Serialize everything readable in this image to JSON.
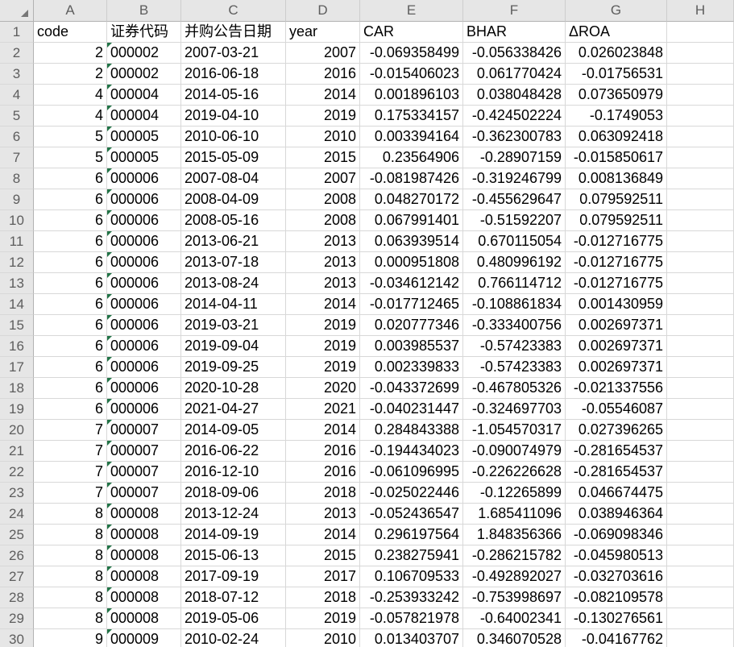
{
  "sheet": {
    "columns": [
      "A",
      "B",
      "C",
      "D",
      "E",
      "F",
      "G",
      "H"
    ],
    "column_alignments": [
      "num",
      "txt",
      "txt",
      "num",
      "num",
      "num",
      "num",
      "txt"
    ],
    "flag_column_index": 1,
    "header_row": {
      "number": "1",
      "cells": [
        "code",
        "证券代码",
        "并购公告日期",
        "year",
        "CAR",
        "BHAR",
        "ΔROA",
        ""
      ]
    },
    "rows": [
      {
        "number": "2",
        "cells": [
          "2",
          "000002",
          "2007-03-21",
          "2007",
          "-0.069358499",
          "-0.056338426",
          "0.026023848",
          ""
        ]
      },
      {
        "number": "3",
        "cells": [
          "2",
          "000002",
          "2016-06-18",
          "2016",
          "-0.015406023",
          "0.061770424",
          "-0.01756531",
          ""
        ]
      },
      {
        "number": "4",
        "cells": [
          "4",
          "000004",
          "2014-05-16",
          "2014",
          "0.001896103",
          "0.038048428",
          "0.073650979",
          ""
        ]
      },
      {
        "number": "5",
        "cells": [
          "4",
          "000004",
          "2019-04-10",
          "2019",
          "0.175334157",
          "-0.424502224",
          "-0.1749053",
          ""
        ]
      },
      {
        "number": "6",
        "cells": [
          "5",
          "000005",
          "2010-06-10",
          "2010",
          "0.003394164",
          "-0.362300783",
          "0.063092418",
          ""
        ]
      },
      {
        "number": "7",
        "cells": [
          "5",
          "000005",
          "2015-05-09",
          "2015",
          "0.23564906",
          "-0.28907159",
          "-0.015850617",
          ""
        ]
      },
      {
        "number": "8",
        "cells": [
          "6",
          "000006",
          "2007-08-04",
          "2007",
          "-0.081987426",
          "-0.319246799",
          "0.008136849",
          ""
        ]
      },
      {
        "number": "9",
        "cells": [
          "6",
          "000006",
          "2008-04-09",
          "2008",
          "0.048270172",
          "-0.455629647",
          "0.079592511",
          ""
        ]
      },
      {
        "number": "10",
        "cells": [
          "6",
          "000006",
          "2008-05-16",
          "2008",
          "0.067991401",
          "-0.51592207",
          "0.079592511",
          ""
        ]
      },
      {
        "number": "11",
        "cells": [
          "6",
          "000006",
          "2013-06-21",
          "2013",
          "0.063939514",
          "0.670115054",
          "-0.012716775",
          ""
        ]
      },
      {
        "number": "12",
        "cells": [
          "6",
          "000006",
          "2013-07-18",
          "2013",
          "0.000951808",
          "0.480996192",
          "-0.012716775",
          ""
        ]
      },
      {
        "number": "13",
        "cells": [
          "6",
          "000006",
          "2013-08-24",
          "2013",
          "-0.034612142",
          "0.766114712",
          "-0.012716775",
          ""
        ]
      },
      {
        "number": "14",
        "cells": [
          "6",
          "000006",
          "2014-04-11",
          "2014",
          "-0.017712465",
          "-0.108861834",
          "0.001430959",
          ""
        ]
      },
      {
        "number": "15",
        "cells": [
          "6",
          "000006",
          "2019-03-21",
          "2019",
          "0.020777346",
          "-0.333400756",
          "0.002697371",
          ""
        ]
      },
      {
        "number": "16",
        "cells": [
          "6",
          "000006",
          "2019-09-04",
          "2019",
          "0.003985537",
          "-0.57423383",
          "0.002697371",
          ""
        ]
      },
      {
        "number": "17",
        "cells": [
          "6",
          "000006",
          "2019-09-25",
          "2019",
          "0.002339833",
          "-0.57423383",
          "0.002697371",
          ""
        ]
      },
      {
        "number": "18",
        "cells": [
          "6",
          "000006",
          "2020-10-28",
          "2020",
          "-0.043372699",
          "-0.467805326",
          "-0.021337556",
          ""
        ]
      },
      {
        "number": "19",
        "cells": [
          "6",
          "000006",
          "2021-04-27",
          "2021",
          "-0.040231447",
          "-0.324697703",
          "-0.05546087",
          ""
        ]
      },
      {
        "number": "20",
        "cells": [
          "7",
          "000007",
          "2014-09-05",
          "2014",
          "0.284843388",
          "-1.054570317",
          "0.027396265",
          ""
        ]
      },
      {
        "number": "21",
        "cells": [
          "7",
          "000007",
          "2016-06-22",
          "2016",
          "-0.194434023",
          "-0.090074979",
          "-0.281654537",
          ""
        ]
      },
      {
        "number": "22",
        "cells": [
          "7",
          "000007",
          "2016-12-10",
          "2016",
          "-0.061096995",
          "-0.226226628",
          "-0.281654537",
          ""
        ]
      },
      {
        "number": "23",
        "cells": [
          "7",
          "000007",
          "2018-09-06",
          "2018",
          "-0.025022446",
          "-0.12265899",
          "0.046674475",
          ""
        ]
      },
      {
        "number": "24",
        "cells": [
          "8",
          "000008",
          "2013-12-24",
          "2013",
          "-0.052436547",
          "1.685411096",
          "0.038946364",
          ""
        ]
      },
      {
        "number": "25",
        "cells": [
          "8",
          "000008",
          "2014-09-19",
          "2014",
          "0.296197564",
          "1.848356366",
          "-0.069098346",
          ""
        ]
      },
      {
        "number": "26",
        "cells": [
          "8",
          "000008",
          "2015-06-13",
          "2015",
          "0.238275941",
          "-0.286215782",
          "-0.045980513",
          ""
        ]
      },
      {
        "number": "27",
        "cells": [
          "8",
          "000008",
          "2017-09-19",
          "2017",
          "0.106709533",
          "-0.492892027",
          "-0.032703616",
          ""
        ]
      },
      {
        "number": "28",
        "cells": [
          "8",
          "000008",
          "2018-07-12",
          "2018",
          "-0.253933242",
          "-0.753998697",
          "-0.082109578",
          ""
        ]
      },
      {
        "number": "29",
        "cells": [
          "8",
          "000008",
          "2019-05-06",
          "2019",
          "-0.057821978",
          "-0.64002341",
          "-0.130276561",
          ""
        ]
      },
      {
        "number": "30",
        "cells": [
          "9",
          "000009",
          "2010-02-24",
          "2010",
          "0.013403707",
          "0.346070528",
          "-0.04167762",
          ""
        ]
      }
    ],
    "colors": {
      "header_bg": "#e6e6e6",
      "header_text": "#5d5d5d",
      "gridline": "#d8d8d8",
      "header_border": "#b2b2b2",
      "cell_text": "#000000",
      "flag_triangle_green": "#217346",
      "corner_triangle_gray": "#777777"
    }
  }
}
